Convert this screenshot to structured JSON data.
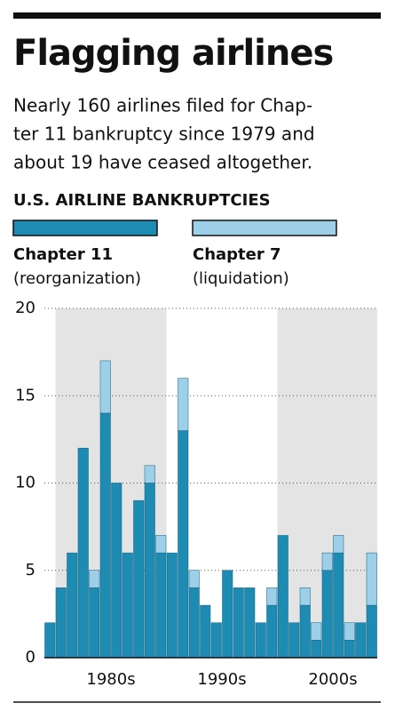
{
  "chart_data": {
    "type": "stacked_bar",
    "title": "Flagging airlines",
    "subtitle": [
      "Nearly 160 airlines filed for Chap-",
      "ter 11 bankruptcy since 1979 and",
      "about 19 have ceased altogether."
    ],
    "heading": "U.S. AIRLINE BANKRUPTCIES",
    "categories": [
      null,
      null,
      null,
      null,
      null,
      null,
      null,
      null,
      null,
      null,
      null,
      null,
      null,
      null,
      null,
      null,
      null,
      null,
      null,
      null,
      null,
      null,
      null,
      null,
      null,
      null,
      null,
      null,
      null,
      null
    ],
    "decades": [
      "1980s",
      "1990s",
      "2000s"
    ],
    "series": [
      {
        "name": "Chapter 11",
        "description": "(reorganization)",
        "color": "#1e8bb3",
        "values": [
          2,
          4,
          6,
          12,
          4,
          14,
          10,
          6,
          9,
          10,
          6,
          6,
          13,
          4,
          3,
          2,
          5,
          4,
          4,
          2,
          3,
          7,
          2,
          3,
          1,
          5,
          6,
          1,
          2,
          3
        ]
      },
      {
        "name": "Chapter 7",
        "description": "(liquidation)",
        "color": "#9dd0e8",
        "values": [
          0,
          0,
          0,
          0,
          1,
          3,
          0,
          0,
          0,
          1,
          1,
          0,
          3,
          1,
          0,
          0,
          0,
          0,
          0,
          0,
          1,
          0,
          0,
          1,
          1,
          1,
          1,
          1,
          0,
          3
        ]
      }
    ],
    "ylim": [
      0,
      20
    ],
    "yticks": [
      0,
      5,
      10,
      15,
      20
    ],
    "grid": true
  }
}
